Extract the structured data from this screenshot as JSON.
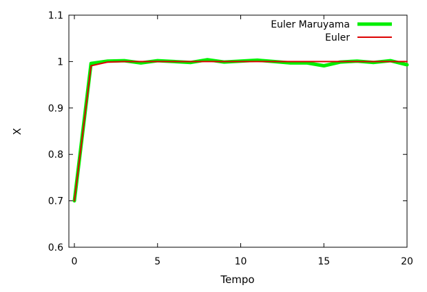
{
  "chart_data": {
    "type": "line",
    "xlabel": "Tempo",
    "ylabel": "X",
    "xlim": [
      0,
      20
    ],
    "ylim": [
      0.6,
      1.1
    ],
    "x_ticks": [
      0,
      5,
      10,
      15,
      20
    ],
    "y_ticks": [
      0.6,
      0.7,
      0.8,
      0.9,
      1.0,
      1.1
    ],
    "x_tick_labels": [
      "0",
      "5",
      "10",
      "15",
      "20"
    ],
    "y_tick_labels": [
      "0.6",
      "0.7",
      "0.8",
      "0.9",
      "1",
      "1.1"
    ],
    "grid": false,
    "legend_position": "top-right",
    "series": [
      {
        "name": "Euler Maruyama",
        "color": "#00ee00",
        "x": [
          0,
          1,
          2,
          3,
          4,
          5,
          6,
          7,
          8,
          9,
          10,
          11,
          12,
          13,
          14,
          15,
          16,
          17,
          18,
          19,
          20
        ],
        "values": [
          0.7,
          0.996,
          1.001,
          1.002,
          0.997,
          1.002,
          1.0,
          0.998,
          1.004,
          0.999,
          1.001,
          1.003,
          1.0,
          0.997,
          0.997,
          0.991,
          0.999,
          1.001,
          0.998,
          1.002,
          0.993
        ]
      },
      {
        "name": "Euler",
        "color": "#dd0000",
        "x": [
          0,
          1,
          2,
          3,
          4,
          5,
          6,
          7,
          8,
          9,
          10,
          11,
          12,
          13,
          14,
          15,
          16,
          17,
          18,
          19,
          20
        ],
        "values": [
          0.7,
          0.991,
          0.999,
          1.0,
          1.0,
          1.0,
          1.0,
          1.0,
          1.0,
          1.0,
          1.0,
          1.0,
          1.0,
          1.0,
          1.0,
          1.0,
          1.0,
          1.0,
          1.0,
          1.0,
          1.0
        ]
      }
    ]
  }
}
